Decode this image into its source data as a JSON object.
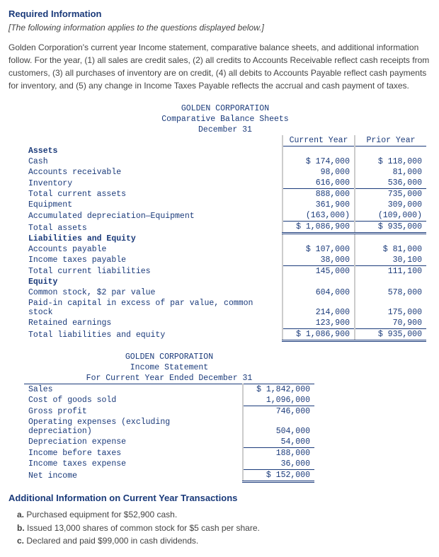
{
  "header": {
    "required": "Required Information",
    "italic": "[The following information applies to the questions displayed below.]",
    "intro": "Golden Corporation's current year Income statement, comparative balance sheets, and additional information follow. For the year, (1) all sales are credit sales, (2) all credits to Accounts Receivable reflect cash receipts from customers, (3) all purchases of inventory are on credit, (4) all debits to Accounts Payable reflect cash payments for inventory, and (5) any change in Income Taxes Payable reflects the accrual and cash payment of taxes."
  },
  "bs": {
    "company": "GOLDEN CORPORATION",
    "title": "Comparative Balance Sheets",
    "date": "December 31",
    "col_current": "Current Year",
    "col_prior": "Prior Year",
    "sec_assets": "Assets",
    "rows_assets": {
      "cash": {
        "label": "Cash",
        "cy": "$ 174,000",
        "py": "$ 118,000"
      },
      "ar": {
        "label": "Accounts receivable",
        "cy": "98,000",
        "py": "81,000"
      },
      "inv": {
        "label": "Inventory",
        "cy": "616,000",
        "py": "536,000"
      },
      "tca": {
        "label": "Total current assets",
        "cy": "888,000",
        "py": "735,000"
      },
      "equip": {
        "label": "Equipment",
        "cy": "361,900",
        "py": "309,000"
      },
      "accdep": {
        "label": "Accumulated depreciation—Equipment",
        "cy": "(163,000)",
        "py": "(109,000)"
      },
      "ta": {
        "label": "Total assets",
        "cy": "$ 1,086,900",
        "py": "$ 935,000"
      }
    },
    "sec_le": "Liabilities and Equity",
    "rows_le": {
      "ap": {
        "label": "Accounts payable",
        "cy": "$ 107,000",
        "py": "$ 81,000"
      },
      "itp": {
        "label": "Income taxes payable",
        "cy": "38,000",
        "py": "30,100"
      },
      "tcl": {
        "label": "Total current liabilities",
        "cy": "145,000",
        "py": "111,100"
      },
      "eq_hdr": "Equity",
      "cs": {
        "label": "Common stock, $2 par value",
        "cy": "604,000",
        "py": "578,000"
      },
      "pic": {
        "label": "Paid-in capital in excess of par value, common stock",
        "cy": "214,000",
        "py": "175,000"
      },
      "re": {
        "label": "Retained earnings",
        "cy": "123,900",
        "py": "70,900"
      },
      "tle": {
        "label": "Total liabilities and equity",
        "cy": "$ 1,086,900",
        "py": "$ 935,000"
      }
    }
  },
  "is": {
    "company": "GOLDEN CORPORATION",
    "title": "Income Statement",
    "date": "For Current Year Ended December 31",
    "rows": {
      "sales": {
        "label": "Sales",
        "v": "$ 1,842,000"
      },
      "cogs": {
        "label": "Cost of goods sold",
        "v": "1,096,000"
      },
      "gp": {
        "label": "Gross profit",
        "v": "746,000"
      },
      "opex": {
        "label": "Operating expenses (excluding depreciation)",
        "v": "504,000"
      },
      "dep": {
        "label": "Depreciation expense",
        "v": "54,000"
      },
      "ibt": {
        "label": "Income before taxes",
        "v": "188,000"
      },
      "ite": {
        "label": "Income taxes expense",
        "v": "36,000"
      },
      "ni": {
        "label": "Net income",
        "v": "$ 152,000"
      }
    }
  },
  "addl": {
    "heading": "Additional Information on Current Year Transactions",
    "a_lbl": "a.",
    "a": "Purchased equipment for $52,900 cash.",
    "b_lbl": "b.",
    "b": "Issued 13,000 shares of common stock for $5 cash per share.",
    "c_lbl": "c.",
    "c": "Declared and paid $99,000 in cash dividends."
  }
}
